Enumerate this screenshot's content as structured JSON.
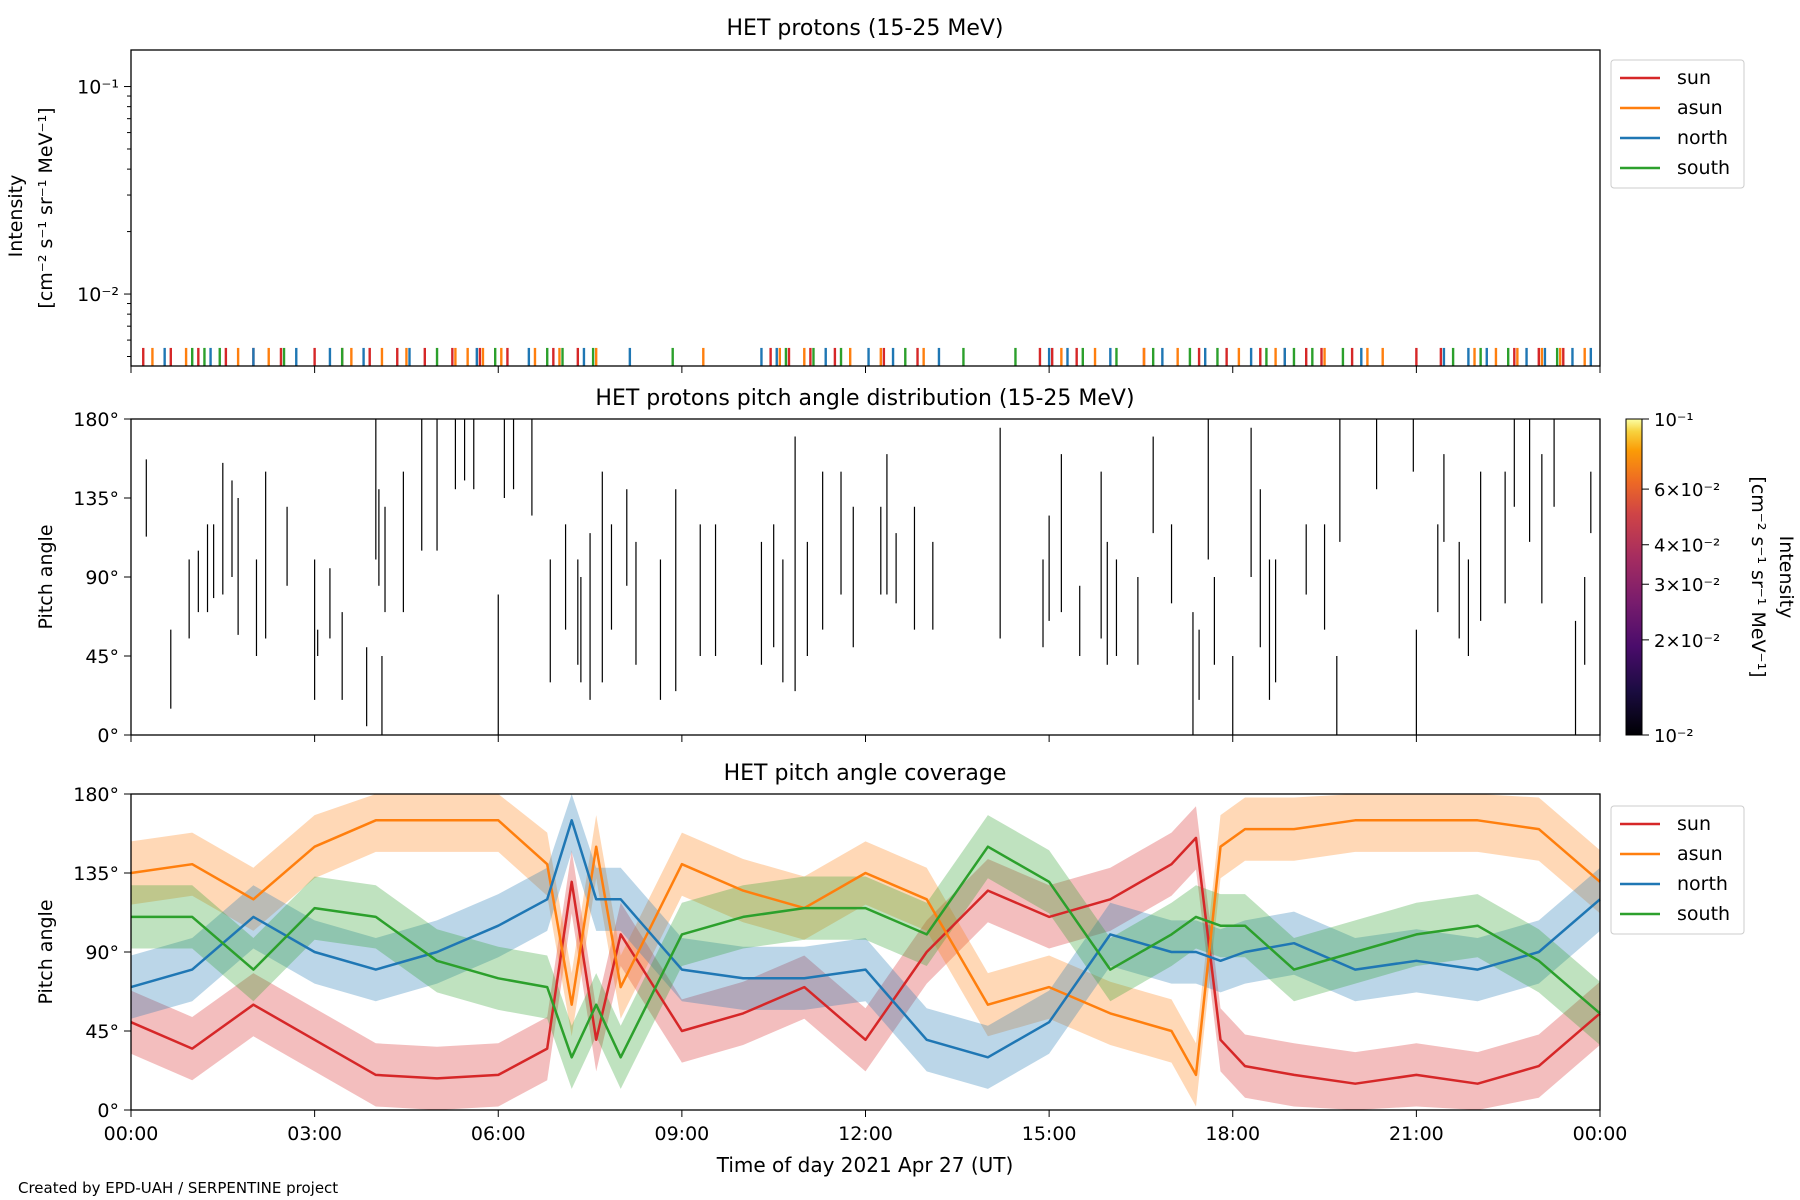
{
  "figure": {
    "credit": "Created by EPD-UAH / SERPENTINE project",
    "xlabel": "Time of day 2021 Apr 27 (UT)",
    "x_ticks": [
      "00:00",
      "03:00",
      "06:00",
      "09:00",
      "12:00",
      "15:00",
      "18:00",
      "21:00",
      "00:00"
    ]
  },
  "colors": {
    "sun": "#d62728",
    "asun": "#ff7f0e",
    "north": "#1f77b4",
    "south": "#2ca02c"
  },
  "chart_data": [
    {
      "type": "line",
      "title": "HET protons (15-25 MeV)",
      "ylabel_line1": "Intensity",
      "ylabel_line2": "[cm⁻² s⁻¹ sr⁻¹ MeV⁻¹]",
      "yscale": "log",
      "ylim": [
        0.0045,
        0.15
      ],
      "y_ticks": [
        "10⁻¹",
        "10⁻²"
      ],
      "xlim_hours": [
        0,
        24
      ],
      "legend_position": "upper right outside",
      "series": [
        {
          "name": "sun",
          "value": 0.0055,
          "x_hours": [
            0.2,
            0.65,
            1.1,
            1.55,
            2.0,
            2.45,
            3.0,
            3.45,
            3.9,
            4.35,
            4.8,
            5.25,
            5.7,
            6.15,
            6.9,
            7.3,
            10.45,
            10.75,
            11.1,
            11.5,
            12.3,
            12.85,
            14.85,
            15.05,
            15.45,
            16.55,
            17.45,
            17.9,
            18.45,
            18.85,
            19.2,
            19.45,
            19.95,
            21.0,
            21.4,
            22.6,
            23.0,
            23.4
          ]
        },
        {
          "name": "asun",
          "value": 0.0055,
          "x_hours": [
            0.35,
            0.9,
            1.75,
            2.25,
            3.6,
            4.1,
            4.5,
            5.3,
            5.5,
            5.75,
            6.05,
            6.6,
            7.0,
            7.6,
            9.35,
            10.6,
            11.0,
            11.75,
            12.25,
            12.95,
            15.2,
            15.75,
            16.55,
            17.1,
            18.1,
            18.7,
            19.5,
            20.2,
            20.45,
            21.95,
            22.3,
            22.65,
            23.05,
            23.35,
            23.75
          ]
        },
        {
          "name": "north",
          "value": 0.0055,
          "x_hours": [
            0.55,
            1.3,
            2.0,
            2.7,
            3.25,
            3.8,
            4.55,
            5.65,
            6.5,
            7.4,
            8.15,
            10.3,
            10.55,
            11.35,
            12.05,
            12.45,
            13.2,
            15.0,
            15.3,
            16.0,
            16.85,
            17.55,
            18.3,
            18.85,
            20.1,
            21.45,
            21.85,
            22.15,
            22.8,
            23.1,
            23.55,
            23.85
          ]
        },
        {
          "name": "south",
          "value": 0.0055,
          "x_hours": [
            1.0,
            1.2,
            1.45,
            2.5,
            3.45,
            5.0,
            5.95,
            6.8,
            7.05,
            7.55,
            8.85,
            10.7,
            11.15,
            11.6,
            12.65,
            13.6,
            14.45,
            15.55,
            16.1,
            16.7,
            17.3,
            17.75,
            18.55,
            19.0,
            19.3,
            19.8,
            21.6,
            22.05,
            22.5,
            23.3
          ]
        }
      ]
    },
    {
      "type": "heatmap",
      "title": "HET protons pitch angle distribution (15-25 MeV)",
      "ylabel": "Pitch angle",
      "ylim": [
        0,
        180
      ],
      "y_ticks": [
        "0°",
        "45°",
        "90°",
        "135°",
        "180°"
      ],
      "xlim_hours": [
        0,
        24
      ],
      "colorbar": {
        "label": "Intensity",
        "units": "[cm⁻² s⁻¹ sr⁻¹ MeV⁻¹]",
        "scale": "log",
        "range": [
          0.01,
          0.1
        ],
        "colormap": "inferno",
        "tick_labels": [
          "10⁻¹",
          "6×10⁻²",
          "4×10⁻²",
          "3×10⁻²",
          "2×10⁻²",
          "10⁻²"
        ],
        "tick_values": [
          0.1,
          0.06,
          0.04,
          0.03,
          0.02,
          0.01
        ]
      },
      "segments_hours_pitch": [
        [
          0.25,
          113,
          157
        ],
        [
          0.65,
          15,
          60
        ],
        [
          0.95,
          55,
          100
        ],
        [
          1.1,
          70,
          105
        ],
        [
          1.25,
          70,
          120
        ],
        [
          1.35,
          78,
          120
        ],
        [
          1.5,
          80,
          155
        ],
        [
          1.65,
          90,
          145
        ],
        [
          1.75,
          57,
          135
        ],
        [
          2.05,
          45,
          100
        ],
        [
          2.2,
          55,
          150
        ],
        [
          2.55,
          85,
          130
        ],
        [
          3.0,
          20,
          100
        ],
        [
          3.05,
          45,
          60
        ],
        [
          3.25,
          55,
          95
        ],
        [
          3.45,
          20,
          70
        ],
        [
          3.85,
          5,
          50
        ],
        [
          4.0,
          100,
          180
        ],
        [
          4.05,
          85,
          140
        ],
        [
          4.1,
          0,
          45
        ],
        [
          4.15,
          70,
          130
        ],
        [
          4.45,
          70,
          150
        ],
        [
          4.75,
          105,
          180
        ],
        [
          5.0,
          105,
          180
        ],
        [
          5.3,
          140,
          180
        ],
        [
          5.45,
          145,
          180
        ],
        [
          5.6,
          140,
          180
        ],
        [
          6.0,
          0,
          80
        ],
        [
          6.1,
          135,
          180
        ],
        [
          6.25,
          140,
          180
        ],
        [
          6.55,
          125,
          180
        ],
        [
          6.85,
          30,
          100
        ],
        [
          7.1,
          60,
          120
        ],
        [
          7.3,
          40,
          100
        ],
        [
          7.35,
          30,
          90
        ],
        [
          7.5,
          20,
          115
        ],
        [
          7.7,
          30,
          150
        ],
        [
          7.85,
          60,
          120
        ],
        [
          8.1,
          85,
          140
        ],
        [
          8.25,
          40,
          110
        ],
        [
          8.65,
          20,
          100
        ],
        [
          8.9,
          25,
          140
        ],
        [
          9.3,
          45,
          120
        ],
        [
          9.55,
          45,
          120
        ],
        [
          10.3,
          40,
          110
        ],
        [
          10.5,
          50,
          120
        ],
        [
          10.65,
          30,
          100
        ],
        [
          10.85,
          25,
          170
        ],
        [
          11.05,
          45,
          110
        ],
        [
          11.3,
          60,
          150
        ],
        [
          11.6,
          80,
          150
        ],
        [
          11.8,
          50,
          130
        ],
        [
          12.25,
          80,
          130
        ],
        [
          12.35,
          80,
          160
        ],
        [
          12.5,
          75,
          115
        ],
        [
          12.8,
          60,
          130
        ],
        [
          13.1,
          60,
          110
        ],
        [
          14.2,
          55,
          175
        ],
        [
          14.9,
          50,
          100
        ],
        [
          15.0,
          65,
          125
        ],
        [
          15.2,
          70,
          160
        ],
        [
          15.5,
          45,
          85
        ],
        [
          15.85,
          55,
          150
        ],
        [
          15.95,
          40,
          110
        ],
        [
          16.1,
          45,
          100
        ],
        [
          16.45,
          40,
          90
        ],
        [
          16.7,
          115,
          170
        ],
        [
          17.0,
          75,
          120
        ],
        [
          17.35,
          0,
          70
        ],
        [
          17.45,
          20,
          60
        ],
        [
          17.6,
          100,
          180
        ],
        [
          17.7,
          40,
          90
        ],
        [
          18.0,
          0,
          45
        ],
        [
          18.3,
          90,
          175
        ],
        [
          18.45,
          50,
          140
        ],
        [
          18.6,
          20,
          100
        ],
        [
          18.7,
          30,
          100
        ],
        [
          19.2,
          80,
          120
        ],
        [
          19.5,
          60,
          120
        ],
        [
          19.7,
          0,
          45
        ],
        [
          19.75,
          110,
          180
        ],
        [
          20.35,
          140,
          180
        ],
        [
          20.95,
          150,
          180
        ],
        [
          21.0,
          0,
          60
        ],
        [
          21.35,
          70,
          120
        ],
        [
          21.45,
          110,
          160
        ],
        [
          21.7,
          55,
          110
        ],
        [
          21.85,
          45,
          100
        ],
        [
          22.05,
          65,
          150
        ],
        [
          22.45,
          75,
          150
        ],
        [
          22.6,
          130,
          180
        ],
        [
          22.85,
          110,
          180
        ],
        [
          23.05,
          75,
          160
        ],
        [
          23.25,
          130,
          180
        ],
        [
          23.6,
          0,
          65
        ],
        [
          23.75,
          40,
          90
        ],
        [
          23.85,
          115,
          150
        ]
      ]
    },
    {
      "type": "line",
      "title": "HET pitch angle coverage",
      "ylabel": "Pitch angle",
      "ylim": [
        0,
        180
      ],
      "y_ticks": [
        "0°",
        "45°",
        "90°",
        "135°",
        "180°"
      ],
      "xlim_hours": [
        0,
        24
      ],
      "legend_position": "upper right outside",
      "band_halfwidth_deg": 18,
      "x_hours": [
        0,
        1,
        2,
        3,
        4,
        5,
        6,
        6.8,
        7.2,
        7.6,
        8,
        9,
        10,
        11,
        12,
        13,
        14,
        15,
        16,
        17,
        17.4,
        17.8,
        18.2,
        19,
        20,
        21,
        22,
        23,
        24
      ],
      "series": [
        {
          "name": "sun",
          "values": [
            50,
            35,
            60,
            40,
            20,
            18,
            20,
            35,
            130,
            40,
            100,
            45,
            55,
            70,
            40,
            90,
            125,
            110,
            120,
            140,
            155,
            40,
            25,
            20,
            15,
            20,
            15,
            25,
            55
          ]
        },
        {
          "name": "asun",
          "values": [
            135,
            140,
            120,
            150,
            165,
            165,
            165,
            140,
            60,
            150,
            70,
            140,
            125,
            115,
            135,
            120,
            60,
            70,
            55,
            45,
            20,
            150,
            160,
            160,
            165,
            165,
            165,
            160,
            130
          ]
        },
        {
          "name": "north",
          "values": [
            70,
            80,
            110,
            90,
            80,
            90,
            105,
            120,
            165,
            120,
            120,
            80,
            75,
            75,
            80,
            40,
            30,
            50,
            100,
            90,
            90,
            85,
            90,
            95,
            80,
            85,
            80,
            90,
            120
          ]
        },
        {
          "name": "south",
          "values": [
            110,
            110,
            80,
            115,
            110,
            85,
            75,
            70,
            30,
            60,
            30,
            100,
            110,
            115,
            115,
            100,
            150,
            130,
            80,
            100,
            110,
            105,
            105,
            80,
            90,
            100,
            105,
            85,
            55
          ]
        }
      ]
    }
  ]
}
